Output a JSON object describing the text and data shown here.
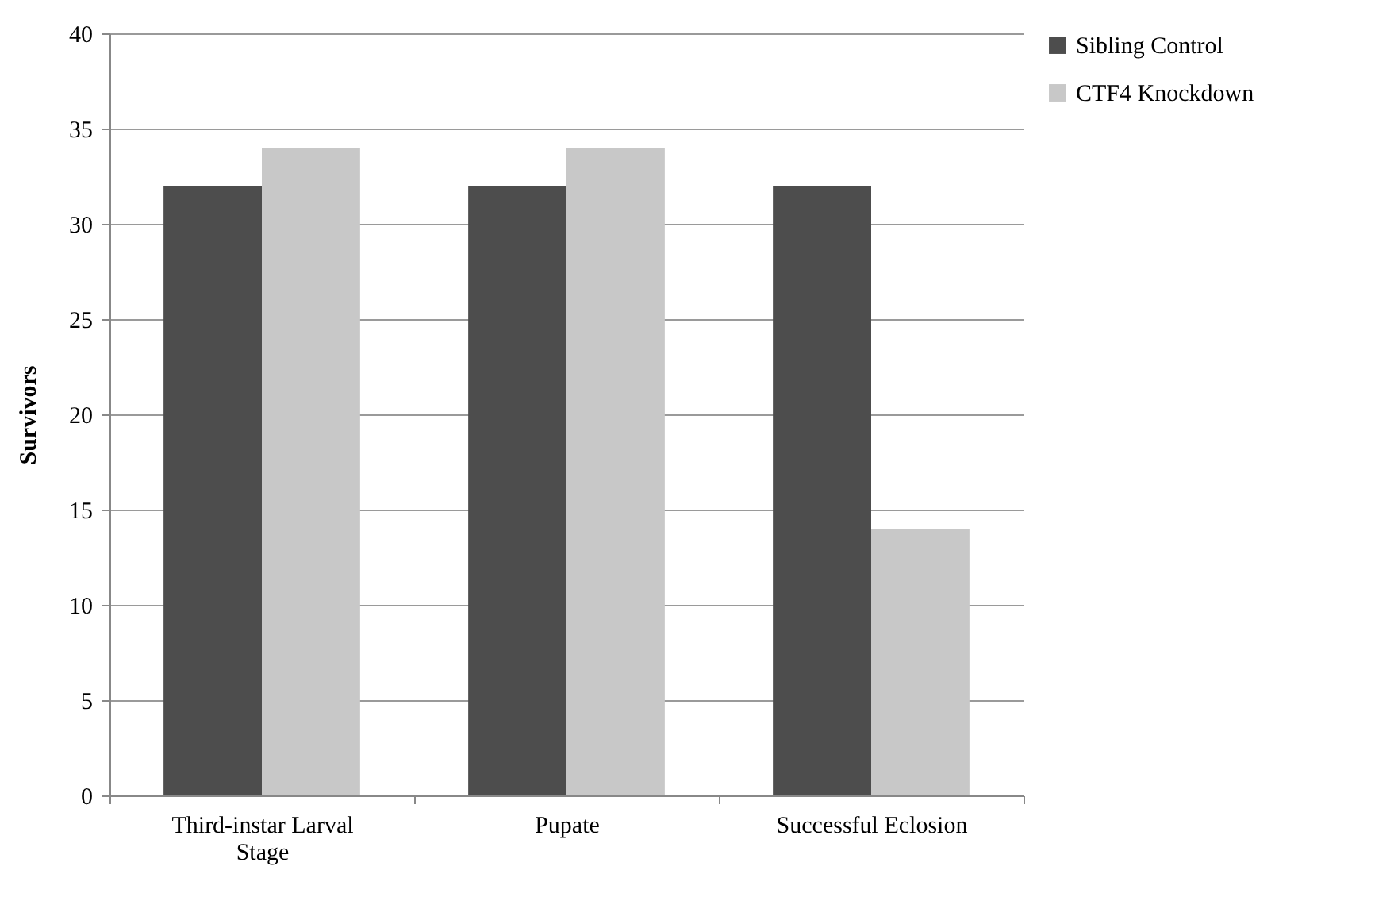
{
  "chart_data": {
    "type": "bar",
    "ylabel": "Survivors",
    "categories": [
      "Third-instar Larval Stage",
      "Pupate",
      "Successful Eclosion"
    ],
    "series": [
      {
        "name": "Sibling Control",
        "color": "#4d4d4d",
        "values": [
          32,
          32,
          32
        ]
      },
      {
        "name": "CTF4 Knockdown",
        "color": "#c8c8c8",
        "values": [
          34,
          34,
          14
        ]
      }
    ],
    "ylim": [
      0,
      40
    ],
    "yticks": [
      0,
      5,
      10,
      15,
      20,
      25,
      30,
      35,
      40
    ],
    "grid": "y",
    "legend": "right"
  }
}
